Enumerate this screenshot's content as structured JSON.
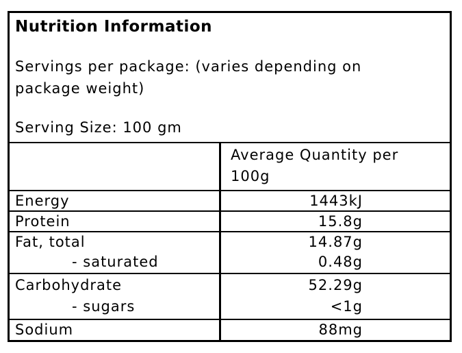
{
  "label": {
    "title": "Nutrition Information",
    "servings_lines": [
      "Servings per package: (varies depending on",
      "package weight)"
    ],
    "serving_size": "Serving Size: 100 gm",
    "table": {
      "value_header_lines": [
        "Average Quantity per",
        "100g"
      ],
      "rows": [
        {
          "nutrient": "Energy",
          "value": "1443kJ"
        },
        {
          "nutrient": "Protein",
          "value": "15.8g"
        },
        {
          "nutrient": "Fat, total",
          "value": "14.87g",
          "sub_nutrient": "- saturated",
          "sub_value": "0.48g"
        },
        {
          "nutrient": "Carbohydrate",
          "value": "52.29g",
          "sub_nutrient": "- sugars",
          "sub_value": "<1g"
        },
        {
          "nutrient": "Sodium",
          "value": "88mg"
        }
      ]
    }
  },
  "colors": {
    "background": "#ffffff",
    "border": "#000000",
    "text": "#000000"
  }
}
